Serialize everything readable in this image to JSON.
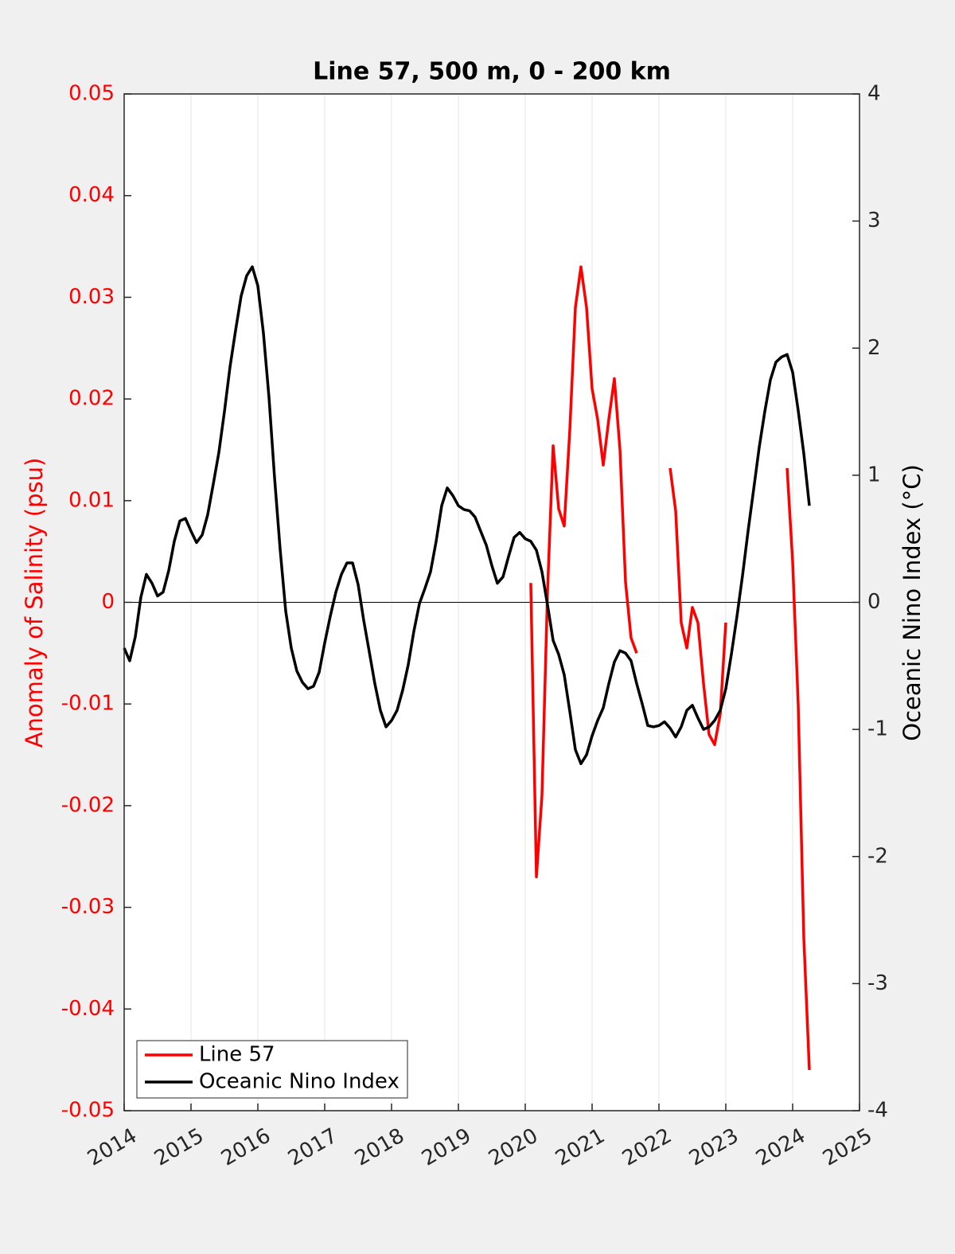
{
  "chart_data": {
    "type": "line",
    "title": "Line 57, 500 m, 0 - 200 km",
    "ylabel": "Anomaly of Salinity (psu)",
    "y2label": "Oceanic Nino Index (°C)",
    "xlim": [
      2014,
      2025
    ],
    "xticks": [
      2014,
      2015,
      2016,
      2017,
      2018,
      2019,
      2020,
      2021,
      2022,
      2023,
      2024,
      2025
    ],
    "ylim": [
      -0.05,
      0.05
    ],
    "yticks": [
      -0.05,
      -0.04,
      -0.03,
      -0.02,
      -0.01,
      0,
      0.01,
      0.02,
      0.03,
      0.04,
      0.05
    ],
    "y2lim": [
      -4,
      4
    ],
    "y2ticks": [
      -4,
      -3,
      -2,
      -1,
      0,
      1,
      2,
      3,
      4
    ],
    "grid": true,
    "legend": "lower left",
    "x": [
      2014,
      2014.083,
      2014.167,
      2014.25,
      2014.333,
      2014.417,
      2014.5,
      2014.583,
      2014.667,
      2014.75,
      2014.833,
      2014.917,
      2015,
      2015.083,
      2015.167,
      2015.25,
      2015.333,
      2015.417,
      2015.5,
      2015.583,
      2015.667,
      2015.75,
      2015.833,
      2015.917,
      2016,
      2016.083,
      2016.167,
      2016.25,
      2016.333,
      2016.417,
      2016.5,
      2016.583,
      2016.667,
      2016.75,
      2016.833,
      2016.917,
      2017,
      2017.083,
      2017.167,
      2017.25,
      2017.333,
      2017.417,
      2017.5,
      2017.583,
      2017.667,
      2017.75,
      2017.833,
      2017.917,
      2018,
      2018.083,
      2018.167,
      2018.25,
      2018.333,
      2018.417,
      2018.5,
      2018.583,
      2018.667,
      2018.75,
      2018.833,
      2018.917,
      2019,
      2019.083,
      2019.167,
      2019.25,
      2019.333,
      2019.417,
      2019.5,
      2019.583,
      2019.667,
      2019.75,
      2019.833,
      2019.917,
      2020,
      2020.083,
      2020.167,
      2020.25,
      2020.333,
      2020.417,
      2020.5,
      2020.583,
      2020.667,
      2020.75,
      2020.833,
      2020.917,
      2021,
      2021.083,
      2021.167,
      2021.25,
      2021.333,
      2021.417,
      2021.5,
      2021.583,
      2021.667,
      2021.75,
      2021.833,
      2021.917,
      2022,
      2022.083,
      2022.167,
      2022.25,
      2022.333,
      2022.417,
      2022.5,
      2022.583,
      2022.667,
      2022.75,
      2022.833,
      2022.917,
      2023,
      2023.083,
      2023.167,
      2023.25,
      2023.333,
      2023.417,
      2023.5,
      2023.583,
      2023.667,
      2023.75,
      2023.833,
      2023.917,
      2024,
      2024.083,
      2024.167,
      2024.25
    ],
    "series": [
      {
        "name": "Line 57",
        "color": "#ff0000",
        "axis": "y",
        "values": [
          null,
          null,
          null,
          null,
          null,
          null,
          null,
          null,
          null,
          null,
          null,
          null,
          null,
          null,
          null,
          null,
          null,
          null,
          null,
          null,
          null,
          null,
          null,
          null,
          null,
          null,
          null,
          null,
          null,
          null,
          null,
          null,
          null,
          null,
          null,
          null,
          null,
          null,
          null,
          null,
          null,
          null,
          null,
          null,
          null,
          null,
          null,
          null,
          null,
          null,
          null,
          null,
          null,
          null,
          null,
          null,
          null,
          null,
          null,
          null,
          null,
          null,
          null,
          null,
          null,
          null,
          null,
          null,
          null,
          null,
          null,
          null,
          null,
          0.0019,
          -0.027,
          -0.019,
          0.001,
          0.0154,
          0.0092,
          0.0075,
          0.017,
          0.029,
          0.033,
          0.029,
          0.021,
          0.018,
          0.0135,
          0.018,
          0.022,
          0.015,
          0.002,
          -0.0035,
          -0.005,
          null,
          null,
          null,
          null,
          null,
          0.0132,
          0.009,
          -0.002,
          -0.0045,
          -0.0005,
          -0.002,
          -0.008,
          -0.013,
          -0.014,
          -0.011,
          -0.002,
          null,
          null,
          null,
          null,
          null,
          null,
          null,
          null,
          null,
          null,
          0.0132,
          0.004,
          -0.01,
          -0.033,
          -0.046
        ]
      },
      {
        "name": "Oceanic Nino Index",
        "color": "#000000",
        "axis": "y2",
        "values": [
          -0.36,
          -0.46,
          -0.27,
          0.04,
          0.22,
          0.15,
          0.05,
          0.08,
          0.25,
          0.48,
          0.64,
          0.66,
          0.56,
          0.47,
          0.53,
          0.69,
          0.93,
          1.18,
          1.5,
          1.85,
          2.14,
          2.41,
          2.57,
          2.64,
          2.49,
          2.12,
          1.61,
          0.98,
          0.42,
          -0.07,
          -0.36,
          -0.54,
          -0.63,
          -0.68,
          -0.66,
          -0.55,
          -0.32,
          -0.11,
          0.08,
          0.22,
          0.31,
          0.31,
          0.14,
          -0.14,
          -0.39,
          -0.64,
          -0.85,
          -0.98,
          -0.93,
          -0.85,
          -0.69,
          -0.49,
          -0.23,
          -0.01,
          0.11,
          0.24,
          0.48,
          0.76,
          0.9,
          0.84,
          0.76,
          0.73,
          0.72,
          0.67,
          0.56,
          0.45,
          0.29,
          0.15,
          0.2,
          0.36,
          0.51,
          0.55,
          0.5,
          0.48,
          0.41,
          0.24,
          -0.02,
          -0.3,
          -0.41,
          -0.57,
          -0.86,
          -1.16,
          -1.27,
          -1.2,
          -1.05,
          -0.93,
          -0.83,
          -0.64,
          -0.47,
          -0.38,
          -0.4,
          -0.46,
          -0.64,
          -0.8,
          -0.97,
          -0.98,
          -0.97,
          -0.94,
          -0.99,
          -1.06,
          -0.98,
          -0.85,
          -0.81,
          -0.91,
          -1.0,
          -0.98,
          -0.93,
          -0.85,
          -0.68,
          -0.41,
          -0.11,
          0.21,
          0.56,
          0.89,
          1.22,
          1.5,
          1.75,
          1.89,
          1.93,
          1.95,
          1.81,
          1.51,
          1.17,
          0.76
        ]
      }
    ]
  }
}
